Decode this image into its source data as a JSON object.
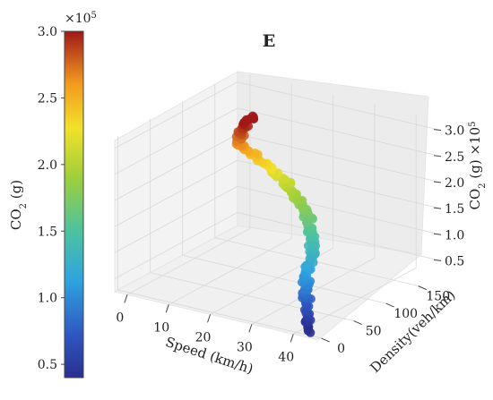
{
  "chart_data": {
    "type": "scatter",
    "title": "E",
    "xlabel": "Speed (km/h)",
    "ylabel": "Density(veh/km)",
    "zlabel_main": "CO",
    "zlabel_sub": "2",
    "zlabel_unit": " (g) ×10",
    "zlabel_exp": "5",
    "xlim": [
      -3,
      46
    ],
    "ylim": [
      -5,
      185
    ],
    "zlim": [
      0.25,
      3.2
    ],
    "x_ticks": [
      0,
      10,
      20,
      30,
      40
    ],
    "y_ticks": [
      0,
      50,
      100,
      150
    ],
    "z_ticks": [
      0.5,
      1.0,
      1.5,
      2.0,
      2.5,
      3.0
    ],
    "x_tick_labels": [
      "0",
      "10",
      "20",
      "30",
      "40"
    ],
    "y_tick_labels": [
      "0",
      "50",
      "100",
      "150"
    ],
    "z_tick_labels": [
      "0.5",
      "1.0",
      "1.5",
      "2.0",
      "2.5",
      "3.0"
    ],
    "grid": true,
    "series": [
      {
        "points": [
          [
            43,
            2,
            0.3
          ],
          [
            42,
            5,
            0.4
          ],
          [
            41,
            10,
            0.55
          ],
          [
            40,
            15,
            0.7
          ],
          [
            39.5,
            18,
            0.8
          ],
          [
            38.5,
            25,
            0.95
          ],
          [
            37.5,
            32,
            1.05
          ],
          [
            36.5,
            42,
            1.15
          ],
          [
            35.5,
            52,
            1.25
          ],
          [
            34,
            62,
            1.35
          ],
          [
            32.5,
            72,
            1.45
          ],
          [
            31,
            80,
            1.55
          ],
          [
            29.5,
            86,
            1.65
          ],
          [
            27.5,
            92,
            1.75
          ],
          [
            25.5,
            97,
            1.85
          ],
          [
            23.5,
            101,
            1.95
          ],
          [
            21.5,
            104,
            2.05
          ],
          [
            19.5,
            106,
            2.15
          ],
          [
            17.5,
            107,
            2.25
          ],
          [
            15.5,
            106,
            2.35
          ],
          [
            13.5,
            104,
            2.45
          ],
          [
            12,
            102,
            2.55
          ],
          [
            11,
            100,
            2.65
          ],
          [
            10.5,
            101,
            2.75
          ],
          [
            10.5,
            103,
            2.85
          ],
          [
            11,
            106,
            2.95
          ],
          [
            11.5,
            109,
            3.05
          ],
          [
            12,
            112,
            3.12
          ]
        ]
      }
    ],
    "colorbar": {
      "label_main": "CO",
      "label_sub": "2",
      "label_unit": " (g)",
      "offset_base": "×10",
      "offset_exp": "5",
      "min": 0.4,
      "max": 3.0,
      "ticks": [
        0.5,
        1.0,
        1.5,
        2.0,
        2.5,
        3.0
      ],
      "tick_labels": [
        "0.5",
        "1.0",
        "1.5",
        "2.0",
        "2.5",
        "3.0"
      ]
    }
  }
}
